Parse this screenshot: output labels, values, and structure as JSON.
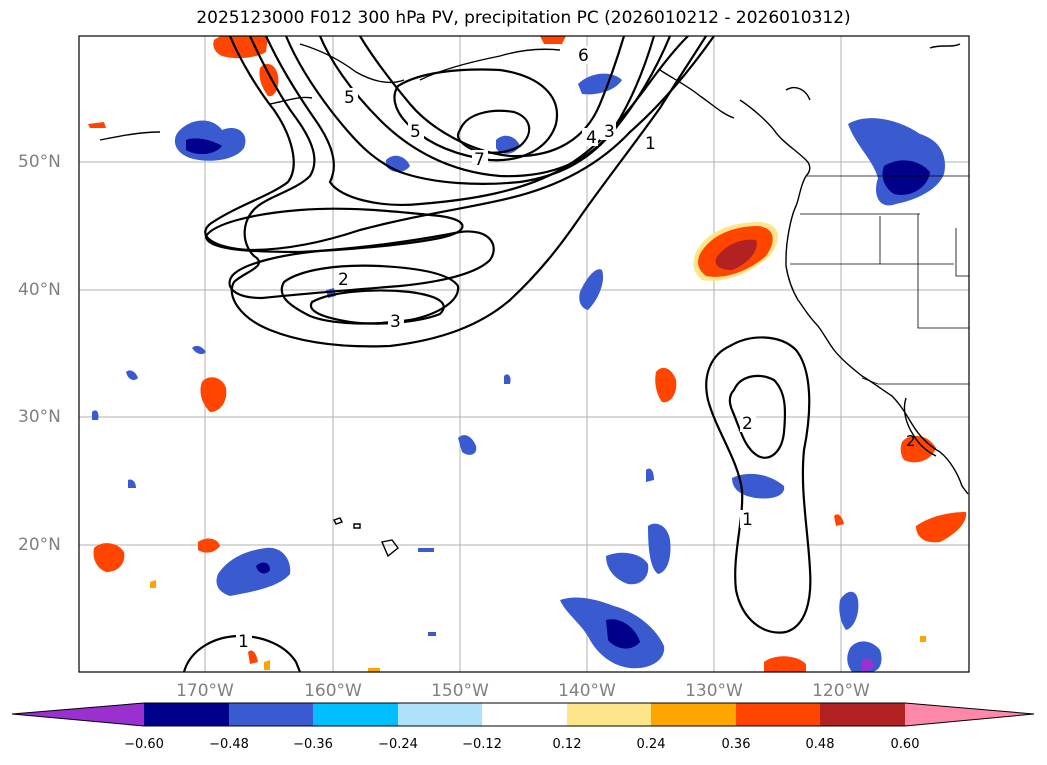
{
  "title": "2025123000 F012 300 hPa PV, precipitation PC (2026010212 - 2026010312)",
  "map": {
    "lat_labels": [
      "50°N",
      "40°N",
      "30°N",
      "20°N"
    ],
    "lon_labels": [
      "170°W",
      "160°W",
      "150°W",
      "140°W",
      "130°W",
      "120°W"
    ],
    "contour_labels": [
      "1",
      "2",
      "3",
      "4",
      "5",
      "6",
      "7",
      "5",
      "2",
      "3",
      "1",
      "1",
      "2",
      "1"
    ]
  },
  "colorbar": {
    "ticks": [
      "−0.60",
      "−0.48",
      "−0.36",
      "−0.24",
      "−0.12",
      "0.12",
      "0.24",
      "0.36",
      "0.48",
      "0.60"
    ],
    "colors": [
      "#9b30d0",
      "#00008b",
      "#3a5bd0",
      "#00bfff",
      "#aee2fa",
      "#ffffff",
      "#fde68a",
      "#ffa500",
      "#ff4500",
      "#b22222",
      "#ff88aa"
    ]
  }
}
